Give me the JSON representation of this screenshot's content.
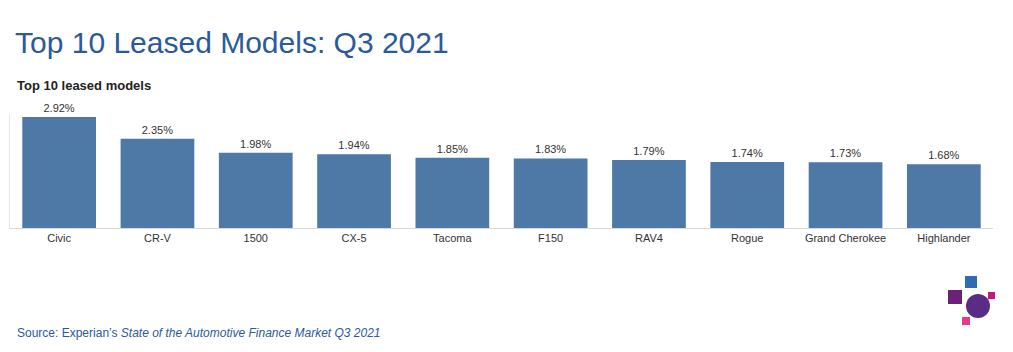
{
  "chart_data": {
    "type": "bar",
    "title": "Top 10 Leased Models: Q3 2021",
    "subtitle": "Top 10 leased models",
    "source_prefix": "Source: Experian’s",
    "source_title": "State of the Automotive Finance Market Q3 2021",
    "categories": [
      "Civic",
      "CR-V",
      "1500",
      "CX-5",
      "Tacoma",
      "F150",
      "RAV4",
      "Rogue",
      "Grand Cherokee",
      "Highlander"
    ],
    "values": [
      2.92,
      2.35,
      1.98,
      1.94,
      1.85,
      1.83,
      1.79,
      1.74,
      1.73,
      1.68
    ],
    "value_labels": [
      "2.92%",
      "2.35%",
      "1.98%",
      "1.94%",
      "1.85%",
      "1.83%",
      "1.79%",
      "1.74%",
      "1.73%",
      "1.68%"
    ],
    "color": "#4e79a7",
    "ylim": [
      0,
      3
    ],
    "yticks": [],
    "grid": false,
    "data_labels": true,
    "tick_labels": "x"
  }
}
